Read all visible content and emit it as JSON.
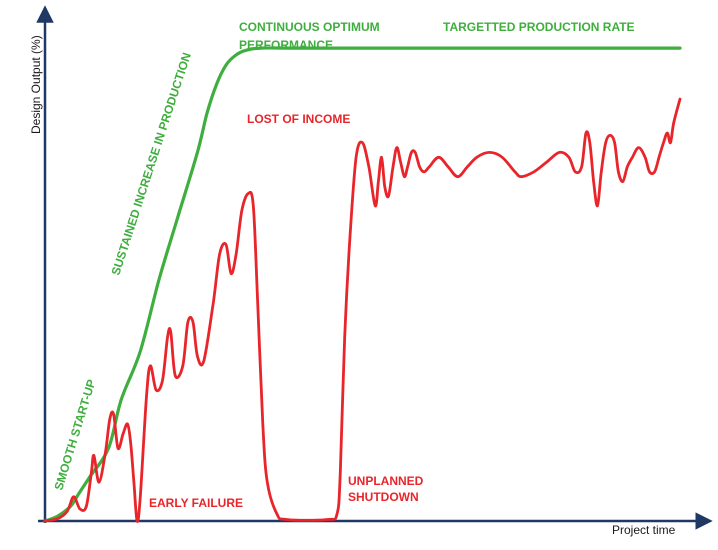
{
  "chart_data": {
    "type": "line",
    "title": "",
    "xlabel": "Project time",
    "ylabel": "Design Output  (%)",
    "colors": {
      "axis": "#1f3864",
      "green": "#3fae3f",
      "red": "#e8252a"
    },
    "series": [
      {
        "name": "",
        "color": "#3fae3f",
        "points": [
          [
            0,
            0
          ],
          [
            2,
            1
          ],
          [
            4,
            3
          ],
          [
            5,
            5
          ],
          [
            7,
            9
          ],
          [
            10,
            15
          ],
          [
            12,
            25
          ],
          [
            15,
            35
          ],
          [
            18,
            50
          ],
          [
            21,
            63
          ],
          [
            24,
            76
          ],
          [
            25.5,
            84
          ],
          [
            27,
            90
          ],
          [
            28.5,
            94
          ],
          [
            30,
            96
          ],
          [
            31.5,
            97
          ],
          [
            34,
            97.5
          ],
          [
            40,
            97.5
          ],
          [
            60,
            97.5
          ],
          [
            80,
            97.5
          ],
          [
            100,
            97.5
          ]
        ]
      },
      {
        "name": "",
        "color": "#e8252a",
        "points": [
          [
            0,
            0
          ],
          [
            2,
            0.5
          ],
          [
            3.5,
            2
          ],
          [
            4.5,
            5
          ],
          [
            5.5,
            2.5
          ],
          [
            6.5,
            3
          ],
          [
            7.3,
            10
          ],
          [
            7.7,
            13.5
          ],
          [
            8.5,
            8
          ],
          [
            9.5,
            14
          ],
          [
            10.2,
            21
          ],
          [
            10.8,
            22
          ],
          [
            11.5,
            15
          ],
          [
            12.3,
            18
          ],
          [
            13,
            20
          ],
          [
            13.5,
            16
          ],
          [
            14,
            8
          ],
          [
            14.5,
            0
          ],
          [
            15,
            5
          ],
          [
            16,
            26
          ],
          [
            16.6,
            32
          ],
          [
            17.5,
            27
          ],
          [
            18.5,
            29
          ],
          [
            19.3,
            38
          ],
          [
            19.8,
            39
          ],
          [
            20.5,
            30
          ],
          [
            21.7,
            32
          ],
          [
            22.5,
            41
          ],
          [
            23.3,
            41
          ],
          [
            24,
            34
          ],
          [
            25,
            33
          ],
          [
            26.5,
            45
          ],
          [
            27.5,
            55
          ],
          [
            28.5,
            57
          ],
          [
            29.3,
            51
          ],
          [
            30.1,
            55
          ],
          [
            31,
            64
          ],
          [
            32,
            67.5
          ],
          [
            32.8,
            65
          ],
          [
            33.5,
            45
          ],
          [
            34.3,
            20
          ],
          [
            35,
            8
          ],
          [
            36.5,
            1.5
          ],
          [
            38,
            0.3
          ],
          [
            44.5,
            0.3
          ],
          [
            46,
            1.5
          ],
          [
            46.5,
            10
          ],
          [
            47.2,
            38
          ],
          [
            48,
            58
          ],
          [
            49,
            75
          ],
          [
            50,
            78
          ],
          [
            51,
            73
          ],
          [
            52,
            65
          ],
          [
            52.5,
            70
          ],
          [
            53,
            75
          ],
          [
            53.5,
            69
          ],
          [
            54.1,
            67
          ],
          [
            54.8,
            73
          ],
          [
            55.4,
            77
          ],
          [
            56,
            74
          ],
          [
            56.6,
            71
          ],
          [
            57.1,
            73
          ],
          [
            57.7,
            76
          ],
          [
            58.3,
            76
          ],
          [
            59,
            73
          ],
          [
            59.7,
            72
          ],
          [
            60.5,
            73
          ],
          [
            62,
            75
          ],
          [
            63.5,
            73
          ],
          [
            65,
            71
          ],
          [
            66.5,
            73
          ],
          [
            68,
            75
          ],
          [
            70,
            76
          ],
          [
            72,
            75
          ],
          [
            74,
            72
          ],
          [
            75,
            71
          ],
          [
            77,
            72
          ],
          [
            79,
            74
          ],
          [
            81,
            76
          ],
          [
            82.5,
            75
          ],
          [
            83.5,
            72
          ],
          [
            84.5,
            73
          ],
          [
            85.2,
            80
          ],
          [
            85.8,
            78
          ],
          [
            86.4,
            70
          ],
          [
            87,
            65
          ],
          [
            87.6,
            72
          ],
          [
            88.3,
            78
          ],
          [
            89,
            79.5
          ],
          [
            89.7,
            78
          ],
          [
            90.3,
            72
          ],
          [
            91,
            70
          ],
          [
            91.7,
            73
          ],
          [
            92.5,
            75
          ],
          [
            93.5,
            77
          ],
          [
            94.5,
            75
          ],
          [
            95.2,
            72
          ],
          [
            96,
            72
          ],
          [
            96.7,
            75
          ],
          [
            97.4,
            78
          ],
          [
            98,
            80
          ],
          [
            98.5,
            78
          ],
          [
            99,
            82
          ],
          [
            100,
            87
          ]
        ]
      }
    ],
    "annotations": [
      {
        "key": "smooth",
        "text": "SMOOTH START-UP",
        "color": "#3fae3f"
      },
      {
        "key": "sustained",
        "text": "SUSTAINED INCREASE IN PRODUCTION",
        "color": "#3fae3f"
      },
      {
        "key": "continuous_1",
        "text": "CONTINUOUS OPTIMUM",
        "color": "#3fae3f"
      },
      {
        "key": "continuous_2",
        "text": "PERFORMANCE",
        "color": "#3fae3f"
      },
      {
        "key": "targetted",
        "text": "TARGETTED PRODUCTION RATE",
        "color": "#3fae3f"
      },
      {
        "key": "lost",
        "text": "LOST OF INCOME",
        "color": "#e8252a"
      },
      {
        "key": "early",
        "text": "EARLY FAILURE",
        "color": "#e8252a"
      },
      {
        "key": "unplanned_1",
        "text": "UNPLANNED",
        "color": "#e8252a"
      },
      {
        "key": "unplanned_2",
        "text": "SHUTDOWN",
        "color": "#e8252a"
      }
    ],
    "xlim": [
      0,
      100
    ],
    "ylim": [
      0,
      100
    ],
    "grid": false,
    "legend": "none"
  }
}
